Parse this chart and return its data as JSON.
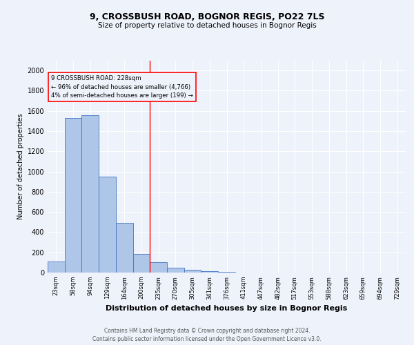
{
  "title1": "9, CROSSBUSH ROAD, BOGNOR REGIS, PO22 7LS",
  "title2": "Size of property relative to detached houses in Bognor Regis",
  "xlabel": "Distribution of detached houses by size in Bognor Regis",
  "ylabel": "Number of detached properties",
  "bin_labels": [
    "23sqm",
    "58sqm",
    "94sqm",
    "129sqm",
    "164sqm",
    "200sqm",
    "235sqm",
    "270sqm",
    "305sqm",
    "341sqm",
    "376sqm",
    "411sqm",
    "447sqm",
    "482sqm",
    "517sqm",
    "553sqm",
    "588sqm",
    "623sqm",
    "659sqm",
    "694sqm",
    "729sqm"
  ],
  "bar_heights": [
    110,
    1530,
    1560,
    950,
    490,
    185,
    100,
    45,
    25,
    15,
    10,
    0,
    0,
    0,
    0,
    0,
    0,
    0,
    0,
    0,
    0
  ],
  "bar_color": "#aec6e8",
  "bar_edge_color": "#4472c4",
  "vline_x_index": 6,
  "annotation_line1": "9 CROSSBUSH ROAD: 228sqm",
  "annotation_line2": "← 96% of detached houses are smaller (4,766)",
  "annotation_line3": "4% of semi-detached houses are larger (199) →",
  "ylim": [
    0,
    2100
  ],
  "yticks": [
    0,
    200,
    400,
    600,
    800,
    1000,
    1200,
    1400,
    1600,
    1800,
    2000
  ],
  "footer1": "Contains HM Land Registry data © Crown copyright and database right 2024.",
  "footer2": "Contains public sector information licensed under the Open Government Licence v3.0.",
  "bg_color": "#eef2fb",
  "grid_color": "#ffffff"
}
